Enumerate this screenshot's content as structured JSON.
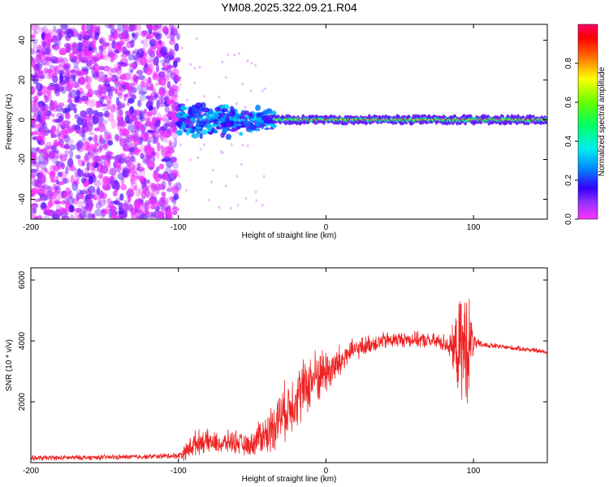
{
  "title": "YM08.2025.322.09.21.R04",
  "chart_data": [
    {
      "type": "heatmap",
      "name": "spectrogram",
      "xlabel": "Height of straight line (km)",
      "ylabel": "Frequency (Hz)",
      "xlim": [
        -200,
        150
      ],
      "ylim": [
        -50,
        48
      ],
      "xticks": [
        -200,
        -100,
        0,
        100
      ],
      "yticks": [
        -40,
        -20,
        0,
        20,
        40
      ],
      "colorbar": {
        "label": "Normalized spectral amplitude",
        "range": [
          0,
          1
        ],
        "ticks": [
          0.0,
          0.2,
          0.4,
          0.6,
          0.8
        ],
        "colors": [
          "#ff33ff",
          "#6600ff",
          "#0000ff",
          "#00ccff",
          "#00ff66",
          "#66ff00",
          "#ffff00",
          "#ff6600",
          "#ff0000",
          "#ff0055"
        ]
      },
      "regions": [
        {
          "description": "scattered low-amplitude noise",
          "x_range": [
            -200,
            -100
          ],
          "freq_range": [
            -50,
            48
          ],
          "amplitude_range": [
            0.0,
            0.15
          ]
        },
        {
          "description": "broad signal band",
          "x_range": [
            -100,
            -35
          ],
          "freq_range": [
            -15,
            10
          ],
          "amplitude_range": [
            0.1,
            0.35
          ]
        },
        {
          "description": "narrow carrier line",
          "x_range": [
            -35,
            150
          ],
          "freq_range": [
            -3,
            3
          ],
          "peak_frequency": 0,
          "amplitude_range": [
            0.4,
            1.0
          ]
        }
      ]
    },
    {
      "type": "line",
      "name": "snr",
      "xlabel": "Height of straight line (km)",
      "ylabel": "SNR (10 * v/v)",
      "xlim": [
        -200,
        150
      ],
      "ylim": [
        0,
        6400
      ],
      "xticks": [
        -200,
        -100,
        0,
        100
      ],
      "yticks": [
        2000,
        4000,
        6000
      ],
      "color": "#ee2222",
      "x": [
        -200,
        -180,
        -160,
        -140,
        -120,
        -100,
        -95,
        -90,
        -85,
        -80,
        -75,
        -70,
        -65,
        -60,
        -55,
        -50,
        -45,
        -40,
        -35,
        -30,
        -25,
        -20,
        -15,
        -10,
        -5,
        0,
        5,
        10,
        15,
        20,
        25,
        30,
        40,
        50,
        60,
        70,
        80,
        85,
        90,
        95,
        98,
        100,
        102,
        105,
        110,
        120,
        130,
        140,
        150
      ],
      "y": [
        150,
        160,
        170,
        180,
        200,
        230,
        350,
        600,
        700,
        680,
        650,
        600,
        700,
        680,
        550,
        600,
        900,
        900,
        1300,
        1600,
        1800,
        2200,
        2400,
        2700,
        2900,
        3000,
        3100,
        3300,
        3600,
        3700,
        3800,
        3900,
        4000,
        4050,
        4050,
        4000,
        3950,
        3800,
        3700,
        3800,
        3900,
        3950,
        3900,
        3880,
        3850,
        3800,
        3750,
        3700,
        3620
      ],
      "noise": [
        100,
        100,
        100,
        100,
        100,
        120,
        350,
        500,
        450,
        450,
        400,
        400,
        450,
        450,
        400,
        450,
        700,
        800,
        1000,
        1100,
        1100,
        1200,
        1200,
        1100,
        1100,
        900,
        800,
        700,
        500,
        400,
        400,
        350,
        350,
        300,
        300,
        300,
        350,
        600,
        1800,
        2500,
        1500,
        500,
        200,
        150,
        120,
        100,
        100,
        100,
        100
      ]
    }
  ]
}
